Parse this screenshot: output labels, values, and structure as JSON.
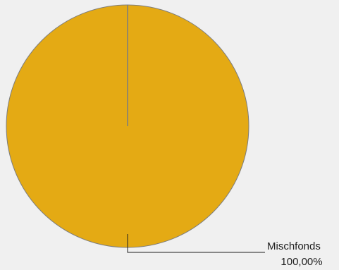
{
  "chart_data": {
    "type": "pie",
    "title": "",
    "slices": [
      {
        "label": "Mischfonds",
        "value": 100.0,
        "percent_label": "100,00%",
        "color": "#E4AA14"
      }
    ],
    "edge_color": "#7d7d7d",
    "leader_line_color": "#1e1e1e",
    "background_color": "#f0f0f0",
    "legend": "none"
  }
}
